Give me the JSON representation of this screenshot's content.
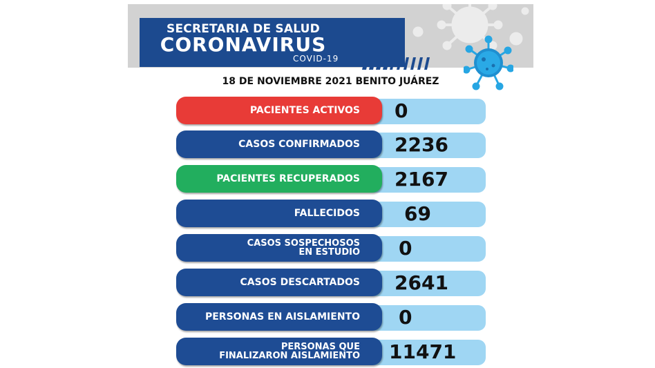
{
  "header": {
    "line1": "SECRETARIA DE SALUD",
    "line2": "CORONAVIRUS",
    "line3": "COVID-19",
    "colors": {
      "header_blue": "#1c4a8f",
      "band_gray": "#d2d2d2"
    }
  },
  "date_line": "18 DE NOVIEMBRE 2021 BENITO JUÁREZ",
  "stats": [
    {
      "label": "PACIENTES ACTIVOS",
      "value": "0",
      "color": "#e83b37"
    },
    {
      "label": "CASOS CONFIRMADOS",
      "value": "2236",
      "color": "#1e4c94"
    },
    {
      "label": "PACIENTES RECUPERADOS",
      "value": "2167",
      "color": "#22ae5e"
    },
    {
      "label": "FALLECIDOS",
      "value": "69",
      "color": "#1e4c94"
    },
    {
      "label_line1": "CASOS SOSPECHOSOS",
      "label_line2": "EN ESTUDIO",
      "value": "0",
      "color": "#1e4c94"
    },
    {
      "label": "CASOS DESCARTADOS",
      "value": "2641",
      "color": "#1e4c94"
    },
    {
      "label": "PERSONAS EN AISLAMIENTO",
      "value": "0",
      "color": "#1e4c94"
    },
    {
      "label_line1": "PERSONAS QUE",
      "label_line2": "FINALIZARON AISLAMIENTO",
      "value": "11471",
      "color": "#1e4c94"
    }
  ],
  "icons": [
    "coronavirus-icon",
    "coronavirus-background-icon",
    "stripes-decoration"
  ]
}
